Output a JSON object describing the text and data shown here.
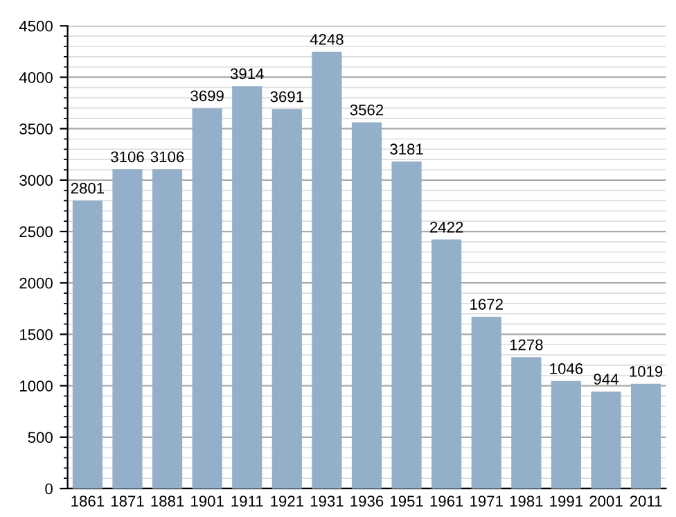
{
  "chart_data": {
    "type": "bar",
    "categories": [
      "1861",
      "1871",
      "1881",
      "1901",
      "1911",
      "1921",
      "1931",
      "1936",
      "1951",
      "1961",
      "1971",
      "1981",
      "1991",
      "2001",
      "2011"
    ],
    "values": [
      2801,
      3106,
      3106,
      3699,
      3914,
      3691,
      4248,
      3562,
      3181,
      2422,
      1672,
      1278,
      1046,
      944,
      1019
    ],
    "color": "#94afca",
    "ylim": [
      0,
      4500
    ],
    "yticks": [
      0,
      500,
      1000,
      1500,
      2000,
      2500,
      3000,
      3500,
      4000,
      4500
    ],
    "grid": "y",
    "data_labels": true
  }
}
